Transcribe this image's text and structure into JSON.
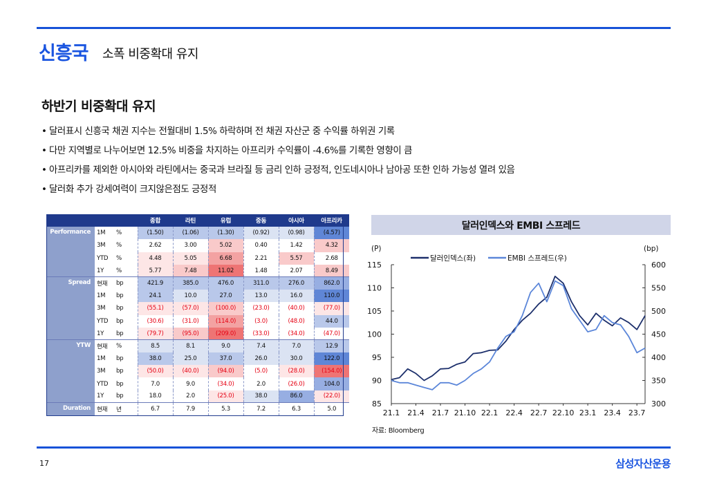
{
  "header": {
    "title": "신흥국",
    "subtitle": "소폭 비중확대 유지"
  },
  "section": {
    "heading": "하반기 비중확대 유지",
    "bullets": [
      "달러표시 신흥국 채권 지수는 전월대비 1.5% 하락하며 전 채권 자산군 중 수익률 하위권 기록",
      "다만 지역별로 나누어보면 12.5% 비중을 차지하는 아프리카 수익률이 -4.6%를 기록한 영향이 큼",
      "아프리카를 제외한 아시아와 라틴에서는 중국과 브라질 등 금리 인하 긍정적, 인도네시아나 남아공 또한 인하 가능성 열려 있음",
      "달러화 추가 강세여력이 크지않은점도 긍정적"
    ],
    "bullet_marker": "•"
  },
  "table": {
    "columns": [
      "종합",
      "라틴",
      "유럽",
      "중동",
      "아시아",
      "아프리카"
    ],
    "groups": [
      {
        "name": "Performance",
        "rows": [
          {
            "label": "1M",
            "unit": "%",
            "values": [
              "(1.50)",
              "(1.06)",
              "(1.30)",
              "(0.92)",
              "(0.98)",
              "(4.57)"
            ],
            "heat": [
              "b2",
              "b2",
              "b2",
              "b1",
              "b1",
              "b4"
            ],
            "neg": [
              false,
              false,
              false,
              false,
              false,
              false
            ]
          },
          {
            "label": "3M",
            "unit": "%",
            "values": [
              "2.62",
              "3.00",
              "5.02",
              "0.40",
              "1.42",
              "4.32"
            ],
            "heat": [
              "h0",
              "h0",
              "r2",
              "h0",
              "h0",
              "r2"
            ],
            "neg": [
              false,
              false,
              false,
              false,
              false,
              false
            ]
          },
          {
            "label": "YTD",
            "unit": "%",
            "values": [
              "4.48",
              "5.05",
              "6.68",
              "2.21",
              "5.57",
              "2.68"
            ],
            "heat": [
              "r1",
              "r1",
              "r3",
              "h0",
              "r2",
              "h0"
            ],
            "neg": [
              false,
              false,
              false,
              false,
              false,
              false
            ]
          },
          {
            "label": "1Y",
            "unit": "%",
            "values": [
              "5.77",
              "7.48",
              "11.02",
              "1.48",
              "2.07",
              "8.49"
            ],
            "heat": [
              "r1",
              "r2",
              "r4",
              "h0",
              "h0",
              "r2"
            ],
            "neg": [
              false,
              false,
              false,
              false,
              false,
              false
            ]
          }
        ]
      },
      {
        "name": "Spread",
        "rows": [
          {
            "label": "현재",
            "unit": "bp",
            "values": [
              "421.9",
              "385.0",
              "476.0",
              "311.0",
              "276.0",
              "862.0"
            ],
            "heat": [
              "b2",
              "b2",
              "b2",
              "b2",
              "b2",
              "b3"
            ],
            "neg": [
              false,
              false,
              false,
              false,
              false,
              false
            ]
          },
          {
            "label": "1M",
            "unit": "bp",
            "values": [
              "24.1",
              "10.0",
              "27.0",
              "13.0",
              "16.0",
              "110.0"
            ],
            "heat": [
              "b2",
              "b1",
              "b2",
              "b1",
              "b1",
              "b4"
            ],
            "neg": [
              false,
              false,
              false,
              false,
              false,
              false
            ]
          },
          {
            "label": "3M",
            "unit": "bp",
            "values": [
              "(55.1)",
              "(57.0)",
              "(100.0)",
              "(23.0)",
              "(40.0)",
              "(77.0)"
            ],
            "heat": [
              "r1",
              "r1",
              "r2",
              "h0",
              "h0",
              "r1"
            ],
            "neg": [
              true,
              true,
              true,
              true,
              true,
              true
            ]
          },
          {
            "label": "YTD",
            "unit": "bp",
            "values": [
              "(30.6)",
              "(31.0)",
              "(114.0)",
              "(3.0)",
              "(48.0)",
              "44.0"
            ],
            "heat": [
              "h0",
              "h0",
              "r3",
              "h0",
              "h0",
              "b2"
            ],
            "neg": [
              true,
              true,
              true,
              true,
              true,
              false
            ]
          },
          {
            "label": "1Y",
            "unit": "bp",
            "values": [
              "(79.7)",
              "(95.0)",
              "(209.0)",
              "(33.0)",
              "(34.0)",
              "(47.0)"
            ],
            "heat": [
              "r1",
              "r2",
              "r4",
              "h0",
              "h0",
              "h0"
            ],
            "neg": [
              true,
              true,
              true,
              true,
              true,
              true
            ]
          }
        ]
      },
      {
        "name": "YTW",
        "rows": [
          {
            "label": "현재",
            "unit": "%",
            "values": [
              "8.5",
              "8.1",
              "9.0",
              "7.4",
              "7.0",
              "12.9"
            ],
            "heat": [
              "b1",
              "b1",
              "b1",
              "b1",
              "b1",
              "b2"
            ],
            "neg": [
              false,
              false,
              false,
              false,
              false,
              false
            ]
          },
          {
            "label": "1M",
            "unit": "bp",
            "values": [
              "38.0",
              "25.0",
              "37.0",
              "26.0",
              "30.0",
              "122.0"
            ],
            "heat": [
              "b2",
              "b1",
              "b2",
              "b1",
              "b1",
              "b4"
            ],
            "neg": [
              false,
              false,
              false,
              false,
              false,
              false
            ]
          },
          {
            "label": "3M",
            "unit": "bp",
            "values": [
              "(50.0)",
              "(40.0)",
              "(94.0)",
              "(5.0)",
              "(28.0)",
              "(154.0)"
            ],
            "heat": [
              "r1",
              "r1",
              "r2",
              "h0",
              "r1",
              "r4"
            ],
            "neg": [
              true,
              true,
              true,
              true,
              true,
              true
            ]
          },
          {
            "label": "YTD",
            "unit": "bp",
            "values": [
              "7.0",
              "9.0",
              "(34.0)",
              "2.0",
              "(26.0)",
              "104.0"
            ],
            "heat": [
              "h0",
              "h0",
              "h0",
              "h0",
              "h0",
              "b3"
            ],
            "neg": [
              false,
              false,
              true,
              false,
              true,
              false
            ]
          },
          {
            "label": "1Y",
            "unit": "bp",
            "values": [
              "18.0",
              "2.0",
              "(25.0)",
              "38.0",
              "86.0",
              "(22.0)"
            ],
            "heat": [
              "h0",
              "h0",
              "r1",
              "b1",
              "b3",
              "r1"
            ],
            "neg": [
              false,
              false,
              true,
              false,
              false,
              true
            ]
          }
        ]
      },
      {
        "name": "Duration",
        "rows": [
          {
            "label": "현재",
            "unit": "년",
            "values": [
              "6.7",
              "7.9",
              "5.3",
              "7.2",
              "6.3",
              "5.0"
            ],
            "heat": [
              "h0",
              "h0",
              "h0",
              "h0",
              "h0",
              "h0"
            ],
            "neg": [
              false,
              false,
              false,
              false,
              false,
              false
            ]
          }
        ]
      }
    ]
  },
  "chart_data": {
    "type": "line",
    "title": "달러인덱스와 EMBI 스프레드",
    "left_axis_unit": "(P)",
    "right_axis_unit": "(bp)",
    "x_ticks": [
      "21.1",
      "21.4",
      "21.7",
      "21.10",
      "22.1",
      "22.4",
      "22.7",
      "22.10",
      "23.1",
      "23.4",
      "23.7"
    ],
    "ylim_left": [
      85,
      115
    ],
    "yticks_left": [
      85,
      90,
      95,
      100,
      105,
      110,
      115
    ],
    "ylim_right": [
      300,
      600
    ],
    "yticks_right": [
      300,
      350,
      400,
      450,
      500,
      550,
      600
    ],
    "legend_position": "top",
    "series": [
      {
        "name": "달러인덱스(좌)",
        "axis": "left",
        "color": "#1c2f6b",
        "x": [
          "21.1",
          "21.2",
          "21.3",
          "21.4",
          "21.5",
          "21.6",
          "21.7",
          "21.8",
          "21.9",
          "21.10",
          "21.11",
          "21.12",
          "22.1",
          "22.2",
          "22.3",
          "22.4",
          "22.5",
          "22.6",
          "22.7",
          "22.8",
          "22.9",
          "22.10",
          "22.11",
          "22.12",
          "23.1",
          "23.2",
          "23.3",
          "23.4",
          "23.5",
          "23.6",
          "23.7",
          "23.8"
        ],
        "values": [
          90.2,
          90.6,
          92.5,
          91.5,
          90.0,
          91.0,
          92.5,
          92.6,
          93.5,
          94.0,
          95.8,
          96.0,
          96.5,
          96.6,
          98.5,
          101.0,
          103.0,
          104.5,
          106.5,
          108.0,
          112.5,
          111.0,
          107.0,
          104.0,
          102.0,
          104.5,
          103.0,
          101.8,
          103.5,
          102.5,
          101.0,
          104.0
        ]
      },
      {
        "name": "EMBI 스프레드(우)",
        "axis": "right",
        "color": "#5b86d9",
        "x": [
          "21.1",
          "21.2",
          "21.3",
          "21.4",
          "21.5",
          "21.6",
          "21.7",
          "21.8",
          "21.9",
          "21.10",
          "21.11",
          "21.12",
          "22.1",
          "22.2",
          "22.3",
          "22.4",
          "22.5",
          "22.6",
          "22.7",
          "22.8",
          "22.9",
          "22.10",
          "22.11",
          "22.12",
          "23.1",
          "23.2",
          "23.3",
          "23.4",
          "23.5",
          "23.6",
          "23.7",
          "23.8"
        ],
        "values": [
          350,
          345,
          345,
          340,
          335,
          330,
          345,
          345,
          340,
          350,
          365,
          375,
          390,
          420,
          445,
          455,
          490,
          540,
          560,
          520,
          565,
          555,
          505,
          480,
          455,
          460,
          490,
          475,
          470,
          445,
          410,
          420
        ]
      }
    ],
    "source": "자료: Bloomberg"
  },
  "footer": {
    "page": "17",
    "brand": "삼성자산운용"
  },
  "colors": {
    "accent": "#1652d8",
    "table_header": "#1f3a8c",
    "group_label": "#8ea0cc",
    "negative": "#e60012"
  }
}
